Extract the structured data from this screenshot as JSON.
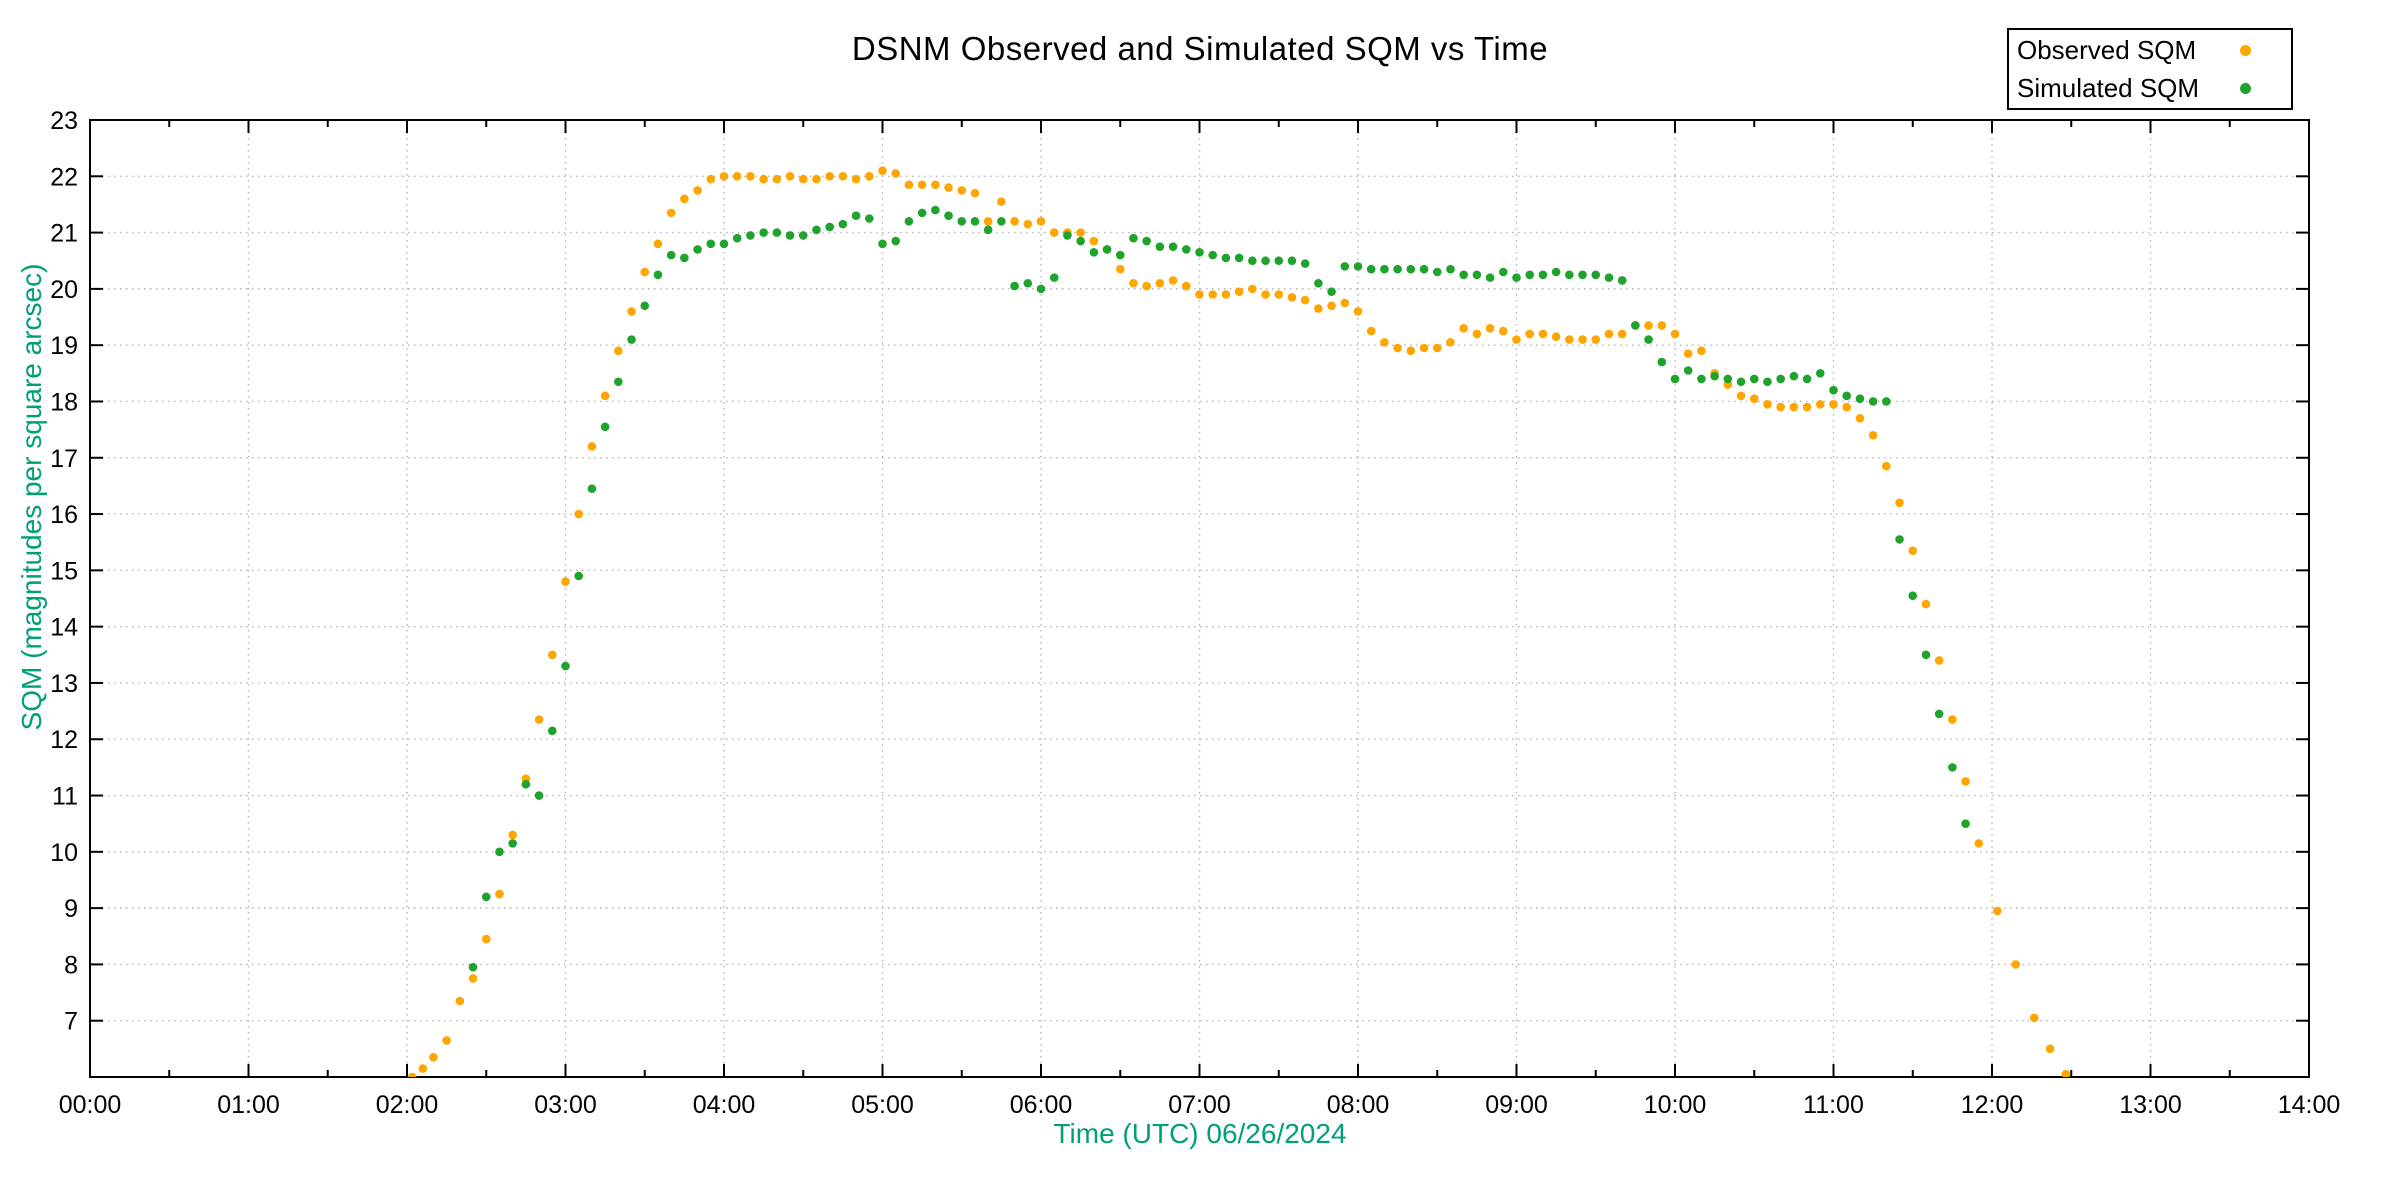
{
  "chart_data": {
    "type": "scatter",
    "title": "DSNM Observed and Simulated SQM vs Time",
    "xlabel": "Time (UTC)   06/26/2024",
    "ylabel": "SQM (magnitudes per square arcsec)",
    "grid": "dotted",
    "x_axis": {
      "min_hours": 0,
      "max_hours": 14,
      "major_tick_hours": 1,
      "minor_tick_hours": 0.5,
      "tick_labels": [
        "00:00",
        "01:00",
        "02:00",
        "03:00",
        "04:00",
        "05:00",
        "06:00",
        "07:00",
        "08:00",
        "09:00",
        "10:00",
        "11:00",
        "12:00",
        "13:00",
        "14:00"
      ]
    },
    "y_axis": {
      "min": 6,
      "max": 23,
      "tick_step": 1,
      "labeled_ticks": [
        7,
        8,
        9,
        10,
        11,
        12,
        13,
        14,
        15,
        16,
        17,
        18,
        19,
        20,
        21,
        22,
        23
      ]
    },
    "legend": {
      "position": "top-right",
      "entries": [
        {
          "label": "Observed SQM",
          "color": "#FFA500"
        },
        {
          "label": "Simulated SQM",
          "color": "#1EA32C"
        }
      ]
    },
    "series": [
      {
        "name": "Observed SQM",
        "color": "#FFA500",
        "points": [
          [
            "02:02",
            6.0
          ],
          [
            "02:06",
            6.15
          ],
          [
            "02:10",
            6.35
          ],
          [
            "02:15",
            6.65
          ],
          [
            "02:20",
            7.35
          ],
          [
            "02:25",
            7.75
          ],
          [
            "02:30",
            8.45
          ],
          [
            "02:35",
            9.25
          ],
          [
            "02:40",
            10.3
          ],
          [
            "02:45",
            11.3
          ],
          [
            "02:50",
            12.35
          ],
          [
            "02:55",
            13.5
          ],
          [
            "03:00",
            14.8
          ],
          [
            "03:05",
            16.0
          ],
          [
            "03:10",
            17.2
          ],
          [
            "03:15",
            18.1
          ],
          [
            "03:20",
            18.9
          ],
          [
            "03:25",
            19.6
          ],
          [
            "03:30",
            20.3
          ],
          [
            "03:35",
            20.8
          ],
          [
            "03:40",
            21.35
          ],
          [
            "03:45",
            21.6
          ],
          [
            "03:50",
            21.75
          ],
          [
            "03:55",
            21.95
          ],
          [
            "04:00",
            22.0
          ],
          [
            "04:05",
            22.0
          ],
          [
            "04:10",
            22.0
          ],
          [
            "04:15",
            21.95
          ],
          [
            "04:20",
            21.95
          ],
          [
            "04:25",
            22.0
          ],
          [
            "04:30",
            21.95
          ],
          [
            "04:35",
            21.95
          ],
          [
            "04:40",
            22.0
          ],
          [
            "04:45",
            22.0
          ],
          [
            "04:50",
            21.95
          ],
          [
            "04:55",
            22.0
          ],
          [
            "05:00",
            22.1
          ],
          [
            "05:05",
            22.05
          ],
          [
            "05:10",
            21.85
          ],
          [
            "05:15",
            21.85
          ],
          [
            "05:20",
            21.85
          ],
          [
            "05:25",
            21.8
          ],
          [
            "05:30",
            21.75
          ],
          [
            "05:35",
            21.7
          ],
          [
            "05:40",
            21.2
          ],
          [
            "05:45",
            21.55
          ],
          [
            "05:50",
            21.2
          ],
          [
            "05:55",
            21.15
          ],
          [
            "06:00",
            21.2
          ],
          [
            "06:05",
            21.0
          ],
          [
            "06:10",
            21.0
          ],
          [
            "06:15",
            21.0
          ],
          [
            "06:20",
            20.85
          ],
          [
            "06:25",
            20.7
          ],
          [
            "06:30",
            20.35
          ],
          [
            "06:35",
            20.1
          ],
          [
            "06:40",
            20.05
          ],
          [
            "06:45",
            20.1
          ],
          [
            "06:50",
            20.15
          ],
          [
            "06:55",
            20.05
          ],
          [
            "07:00",
            19.9
          ],
          [
            "07:05",
            19.9
          ],
          [
            "07:10",
            19.9
          ],
          [
            "07:15",
            19.95
          ],
          [
            "07:20",
            20.0
          ],
          [
            "07:25",
            19.9
          ],
          [
            "07:30",
            19.9
          ],
          [
            "07:35",
            19.85
          ],
          [
            "07:40",
            19.8
          ],
          [
            "07:45",
            19.65
          ],
          [
            "07:50",
            19.7
          ],
          [
            "07:55",
            19.75
          ],
          [
            "08:00",
            19.6
          ],
          [
            "08:05",
            19.25
          ],
          [
            "08:10",
            19.05
          ],
          [
            "08:15",
            18.95
          ],
          [
            "08:20",
            18.9
          ],
          [
            "08:25",
            18.95
          ],
          [
            "08:30",
            18.95
          ],
          [
            "08:35",
            19.05
          ],
          [
            "08:40",
            19.3
          ],
          [
            "08:45",
            19.2
          ],
          [
            "08:50",
            19.3
          ],
          [
            "08:55",
            19.25
          ],
          [
            "09:00",
            19.1
          ],
          [
            "09:05",
            19.2
          ],
          [
            "09:10",
            19.2
          ],
          [
            "09:15",
            19.15
          ],
          [
            "09:20",
            19.1
          ],
          [
            "09:25",
            19.1
          ],
          [
            "09:30",
            19.1
          ],
          [
            "09:35",
            19.2
          ],
          [
            "09:40",
            19.2
          ],
          [
            "09:45",
            19.35
          ],
          [
            "09:50",
            19.35
          ],
          [
            "09:55",
            19.35
          ],
          [
            "10:00",
            19.2
          ],
          [
            "10:05",
            18.85
          ],
          [
            "10:10",
            18.9
          ],
          [
            "10:15",
            18.5
          ],
          [
            "10:20",
            18.3
          ],
          [
            "10:25",
            18.1
          ],
          [
            "10:30",
            18.05
          ],
          [
            "10:35",
            17.95
          ],
          [
            "10:40",
            17.9
          ],
          [
            "10:45",
            17.9
          ],
          [
            "10:50",
            17.9
          ],
          [
            "10:55",
            17.95
          ],
          [
            "11:00",
            17.95
          ],
          [
            "11:05",
            17.9
          ],
          [
            "11:10",
            17.7
          ],
          [
            "11:15",
            17.4
          ],
          [
            "11:20",
            16.85
          ],
          [
            "11:25",
            16.2
          ],
          [
            "11:30",
            15.35
          ],
          [
            "11:35",
            14.4
          ],
          [
            "11:40",
            13.4
          ],
          [
            "11:45",
            12.35
          ],
          [
            "11:50",
            11.25
          ],
          [
            "11:55",
            10.15
          ],
          [
            "12:02",
            8.95
          ],
          [
            "12:09",
            8.0
          ],
          [
            "12:16",
            7.05
          ],
          [
            "12:22",
            6.5
          ],
          [
            "12:28",
            6.05
          ]
        ]
      },
      {
        "name": "Simulated SQM",
        "color": "#1EA32C",
        "points": [
          [
            "02:25",
            7.95
          ],
          [
            "02:30",
            9.2
          ],
          [
            "02:35",
            10.0
          ],
          [
            "02:40",
            10.15
          ],
          [
            "02:45",
            11.2
          ],
          [
            "02:50",
            11.0
          ],
          [
            "02:55",
            12.15
          ],
          [
            "03:00",
            13.3
          ],
          [
            "03:05",
            14.9
          ],
          [
            "03:10",
            16.45
          ],
          [
            "03:15",
            17.55
          ],
          [
            "03:20",
            18.35
          ],
          [
            "03:25",
            19.1
          ],
          [
            "03:30",
            19.7
          ],
          [
            "03:35",
            20.25
          ],
          [
            "03:40",
            20.6
          ],
          [
            "03:45",
            20.55
          ],
          [
            "03:50",
            20.7
          ],
          [
            "03:55",
            20.8
          ],
          [
            "04:00",
            20.8
          ],
          [
            "04:05",
            20.9
          ],
          [
            "04:10",
            20.95
          ],
          [
            "04:15",
            21.0
          ],
          [
            "04:20",
            21.0
          ],
          [
            "04:25",
            20.95
          ],
          [
            "04:30",
            20.95
          ],
          [
            "04:35",
            21.05
          ],
          [
            "04:40",
            21.1
          ],
          [
            "04:45",
            21.15
          ],
          [
            "04:50",
            21.3
          ],
          [
            "04:55",
            21.25
          ],
          [
            "05:00",
            20.8
          ],
          [
            "05:05",
            20.85
          ],
          [
            "05:10",
            21.2
          ],
          [
            "05:15",
            21.35
          ],
          [
            "05:20",
            21.4
          ],
          [
            "05:25",
            21.3
          ],
          [
            "05:30",
            21.2
          ],
          [
            "05:35",
            21.2
          ],
          [
            "05:40",
            21.05
          ],
          [
            "05:45",
            21.2
          ],
          [
            "05:50",
            20.05
          ],
          [
            "05:55",
            20.1
          ],
          [
            "06:00",
            20.0
          ],
          [
            "06:05",
            20.2
          ],
          [
            "06:10",
            20.95
          ],
          [
            "06:15",
            20.85
          ],
          [
            "06:20",
            20.65
          ],
          [
            "06:25",
            20.7
          ],
          [
            "06:30",
            20.6
          ],
          [
            "06:35",
            20.9
          ],
          [
            "06:40",
            20.85
          ],
          [
            "06:45",
            20.75
          ],
          [
            "06:50",
            20.75
          ],
          [
            "06:55",
            20.7
          ],
          [
            "07:00",
            20.65
          ],
          [
            "07:05",
            20.6
          ],
          [
            "07:10",
            20.55
          ],
          [
            "07:15",
            20.55
          ],
          [
            "07:20",
            20.5
          ],
          [
            "07:25",
            20.5
          ],
          [
            "07:30",
            20.5
          ],
          [
            "07:35",
            20.5
          ],
          [
            "07:40",
            20.45
          ],
          [
            "07:45",
            20.1
          ],
          [
            "07:50",
            19.95
          ],
          [
            "07:55",
            20.4
          ],
          [
            "08:00",
            20.4
          ],
          [
            "08:05",
            20.35
          ],
          [
            "08:10",
            20.35
          ],
          [
            "08:15",
            20.35
          ],
          [
            "08:20",
            20.35
          ],
          [
            "08:25",
            20.35
          ],
          [
            "08:30",
            20.3
          ],
          [
            "08:35",
            20.35
          ],
          [
            "08:40",
            20.25
          ],
          [
            "08:45",
            20.25
          ],
          [
            "08:50",
            20.2
          ],
          [
            "08:55",
            20.3
          ],
          [
            "09:00",
            20.2
          ],
          [
            "09:05",
            20.25
          ],
          [
            "09:10",
            20.25
          ],
          [
            "09:15",
            20.3
          ],
          [
            "09:20",
            20.25
          ],
          [
            "09:25",
            20.25
          ],
          [
            "09:30",
            20.25
          ],
          [
            "09:35",
            20.2
          ],
          [
            "09:40",
            20.15
          ],
          [
            "09:45",
            19.35
          ],
          [
            "09:50",
            19.1
          ],
          [
            "09:55",
            18.7
          ],
          [
            "10:00",
            18.4
          ],
          [
            "10:05",
            18.55
          ],
          [
            "10:10",
            18.4
          ],
          [
            "10:15",
            18.45
          ],
          [
            "10:20",
            18.4
          ],
          [
            "10:25",
            18.35
          ],
          [
            "10:30",
            18.4
          ],
          [
            "10:35",
            18.35
          ],
          [
            "10:40",
            18.4
          ],
          [
            "10:45",
            18.45
          ],
          [
            "10:50",
            18.4
          ],
          [
            "10:55",
            18.5
          ],
          [
            "11:00",
            18.2
          ],
          [
            "11:05",
            18.1
          ],
          [
            "11:10",
            18.05
          ],
          [
            "11:15",
            18.0
          ],
          [
            "11:20",
            18.0
          ],
          [
            "11:25",
            15.55
          ],
          [
            "11:30",
            14.55
          ],
          [
            "11:35",
            13.5
          ],
          [
            "11:40",
            12.45
          ],
          [
            "11:45",
            11.5
          ],
          [
            "11:50",
            10.5
          ]
        ]
      }
    ]
  },
  "colors": {
    "axis_label_green": "#00A077",
    "axis": "#000000",
    "grid": "#b4b4b4",
    "background": "#ffffff",
    "observed": "#FFA500",
    "simulated": "#1EA32C"
  }
}
